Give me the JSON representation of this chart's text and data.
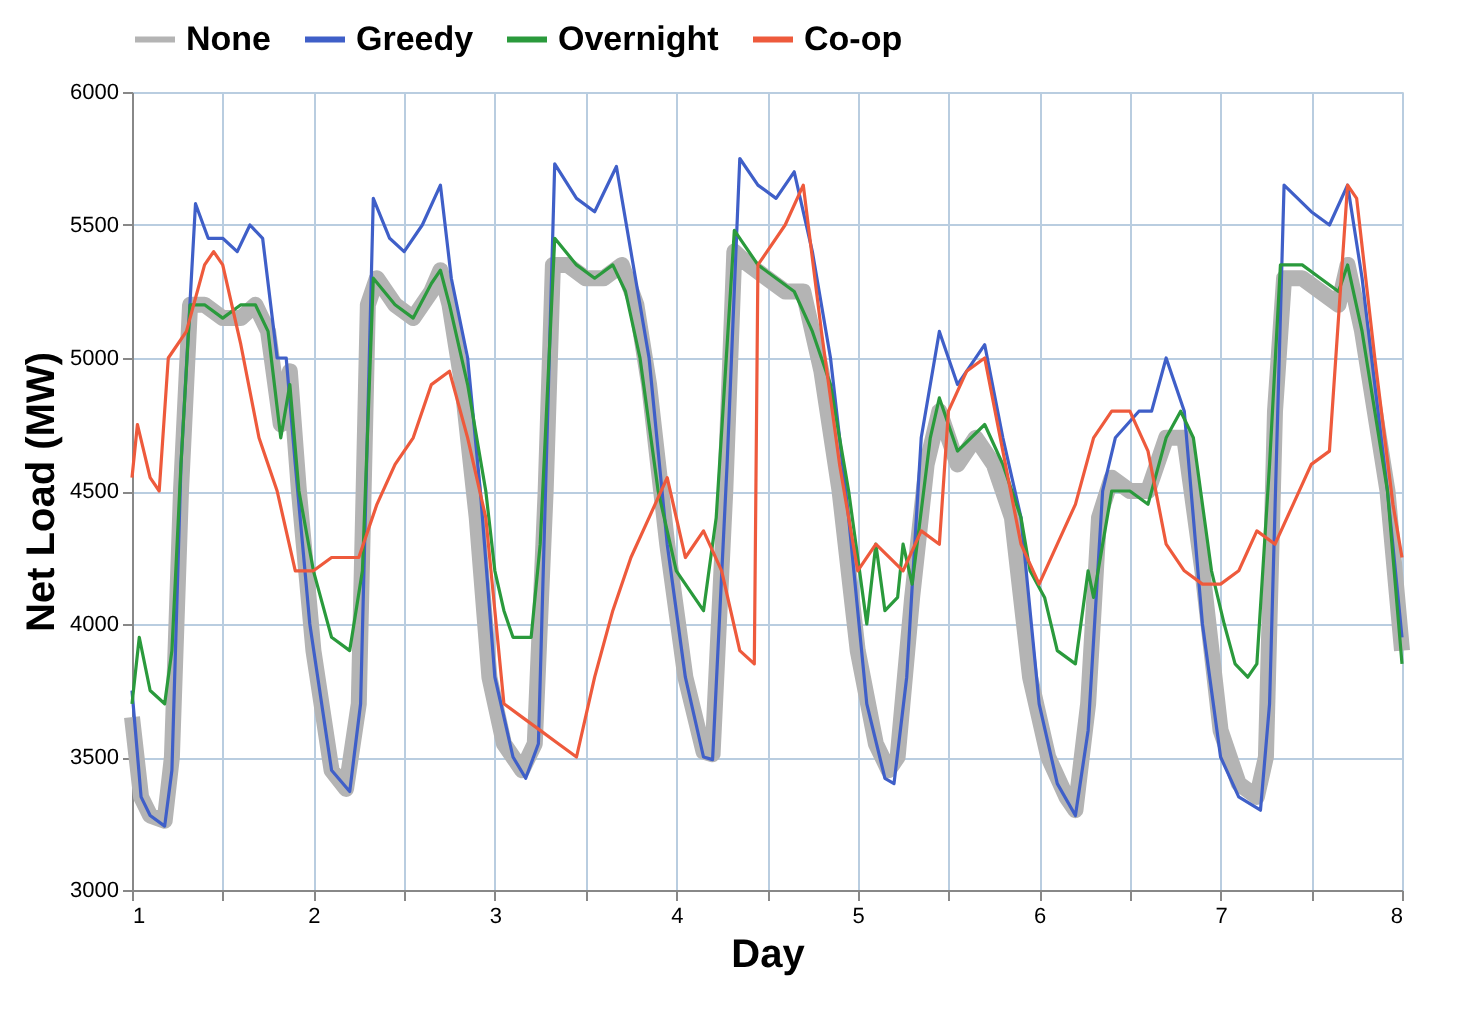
{
  "chart_data": {
    "type": "line",
    "xlabel": "Day",
    "ylabel": "Net Load (MW)",
    "xlim": [
      1,
      8
    ],
    "ylim": [
      3000,
      6000
    ],
    "xticks": [
      1,
      {
        "value": 1.5,
        "label": null
      },
      2,
      {
        "value": 2.5,
        "label": null
      },
      3,
      {
        "value": 3.5,
        "label": null
      },
      4,
      {
        "value": 4.5,
        "label": null
      },
      5,
      {
        "value": 5.5,
        "label": null
      },
      6,
      {
        "value": 6.5,
        "label": null
      },
      7,
      {
        "value": 7.5,
        "label": null
      },
      8
    ],
    "yticks": [
      3000,
      3500,
      4000,
      4500,
      5000,
      5500,
      6000
    ],
    "grid": true,
    "legend": "top",
    "marker": "none",
    "line_style": "solid",
    "series": [
      {
        "name": "None",
        "color": "#b4b4b4",
        "x": [
          1.0,
          1.05,
          1.1,
          1.18,
          1.22,
          1.27,
          1.32,
          1.4,
          1.5,
          1.6,
          1.68,
          1.75,
          1.82,
          1.87,
          1.92,
          2.0,
          2.1,
          2.18,
          2.25,
          2.3,
          2.35,
          2.45,
          2.55,
          2.65,
          2.7,
          2.75,
          2.82,
          2.9,
          2.97,
          3.05,
          3.15,
          3.22,
          3.28,
          3.32,
          3.4,
          3.5,
          3.6,
          3.7,
          3.78,
          3.85,
          3.95,
          4.05,
          4.15,
          4.2,
          4.27,
          4.32,
          4.4,
          4.5,
          4.6,
          4.7,
          4.8,
          4.9,
          5.0,
          5.1,
          5.17,
          5.22,
          5.3,
          5.38,
          5.45,
          5.55,
          5.65,
          5.75,
          5.85,
          5.95,
          6.05,
          6.15,
          6.2,
          6.27,
          6.33,
          6.4,
          6.5,
          6.6,
          6.7,
          6.8,
          6.9,
          7.0,
          7.1,
          7.2,
          7.25,
          7.3,
          7.35,
          7.45,
          7.55,
          7.65,
          7.7,
          7.78,
          7.85,
          7.92,
          8.0
        ],
        "values": [
          3650,
          3350,
          3280,
          3260,
          3500,
          4500,
          5200,
          5200,
          5150,
          5150,
          5200,
          5100,
          4750,
          4950,
          4500,
          3900,
          3450,
          3380,
          3700,
          5200,
          5300,
          5200,
          5150,
          5250,
          5330,
          5200,
          4900,
          4400,
          3800,
          3550,
          3450,
          3550,
          4500,
          5350,
          5350,
          5300,
          5300,
          5350,
          5200,
          4900,
          4300,
          3800,
          3520,
          3510,
          4500,
          5400,
          5350,
          5300,
          5250,
          5250,
          4950,
          4500,
          3900,
          3550,
          3450,
          3500,
          4100,
          4600,
          4800,
          4600,
          4700,
          4600,
          4400,
          3800,
          3500,
          3350,
          3300,
          3700,
          4400,
          4550,
          4500,
          4500,
          4700,
          4700,
          4200,
          3600,
          3400,
          3350,
          3500,
          4800,
          5300,
          5300,
          5250,
          5200,
          5350,
          5100,
          4800,
          4500,
          3900
        ]
      },
      {
        "name": "Greedy",
        "color": "#3f5fc8",
        "x": [
          1.0,
          1.05,
          1.1,
          1.18,
          1.22,
          1.27,
          1.35,
          1.42,
          1.5,
          1.58,
          1.65,
          1.72,
          1.8,
          1.85,
          1.9,
          1.98,
          2.1,
          2.2,
          2.26,
          2.33,
          2.42,
          2.5,
          2.6,
          2.7,
          2.76,
          2.85,
          2.92,
          3.0,
          3.1,
          3.17,
          3.24,
          3.33,
          3.45,
          3.55,
          3.67,
          3.75,
          3.85,
          3.95,
          4.05,
          4.15,
          4.2,
          4.28,
          4.35,
          4.45,
          4.55,
          4.65,
          4.75,
          4.85,
          4.95,
          5.05,
          5.15,
          5.2,
          5.27,
          5.35,
          5.45,
          5.55,
          5.7,
          5.8,
          5.9,
          6.0,
          6.1,
          6.2,
          6.27,
          6.35,
          6.42,
          6.55,
          6.62,
          6.7,
          6.8,
          6.9,
          7.0,
          7.1,
          7.22,
          7.27,
          7.35,
          7.5,
          7.6,
          7.7,
          7.78,
          7.85,
          7.92,
          8.0
        ],
        "values": [
          3750,
          3350,
          3280,
          3240,
          3450,
          4600,
          5580,
          5450,
          5450,
          5400,
          5500,
          5450,
          5000,
          5000,
          4600,
          4000,
          3450,
          3370,
          3700,
          5600,
          5450,
          5400,
          5500,
          5650,
          5300,
          5000,
          4500,
          3800,
          3500,
          3420,
          3550,
          5730,
          5600,
          5550,
          5720,
          5400,
          5000,
          4300,
          3800,
          3500,
          3490,
          4600,
          5750,
          5650,
          5600,
          5700,
          5400,
          5000,
          4400,
          3700,
          3420,
          3400,
          3800,
          4700,
          5100,
          4900,
          5050,
          4700,
          4400,
          3700,
          3400,
          3280,
          3600,
          4500,
          4700,
          4800,
          4800,
          5000,
          4800,
          4000,
          3500,
          3350,
          3300,
          3700,
          5650,
          5550,
          5500,
          5650,
          5300,
          4900,
          4500,
          3950
        ]
      },
      {
        "name": "Overnight",
        "color": "#2a9a3c",
        "x": [
          1.0,
          1.04,
          1.1,
          1.18,
          1.22,
          1.27,
          1.32,
          1.4,
          1.5,
          1.6,
          1.68,
          1.75,
          1.82,
          1.87,
          1.92,
          2.0,
          2.1,
          2.2,
          2.27,
          2.33,
          2.45,
          2.55,
          2.65,
          2.7,
          2.75,
          2.85,
          2.95,
          3.0,
          3.05,
          3.1,
          3.2,
          3.25,
          3.33,
          3.45,
          3.55,
          3.65,
          3.72,
          3.8,
          3.9,
          4.0,
          4.1,
          4.15,
          4.22,
          4.32,
          4.45,
          4.55,
          4.65,
          4.75,
          4.85,
          4.95,
          5.05,
          5.1,
          5.15,
          5.22,
          5.25,
          5.3,
          5.4,
          5.45,
          5.55,
          5.7,
          5.8,
          5.9,
          5.95,
          6.03,
          6.1,
          6.2,
          6.27,
          6.3,
          6.4,
          6.5,
          6.6,
          6.7,
          6.78,
          6.85,
          6.95,
          7.02,
          7.08,
          7.15,
          7.2,
          7.27,
          7.33,
          7.45,
          7.55,
          7.65,
          7.7,
          7.78,
          7.85,
          7.92,
          8.0
        ],
        "values": [
          3700,
          3950,
          3750,
          3700,
          3900,
          4600,
          5200,
          5200,
          5150,
          5200,
          5200,
          5100,
          4700,
          4900,
          4500,
          4200,
          3950,
          3900,
          4200,
          5300,
          5200,
          5150,
          5280,
          5330,
          5200,
          4900,
          4500,
          4200,
          4050,
          3950,
          3950,
          4300,
          5450,
          5350,
          5300,
          5350,
          5250,
          5000,
          4500,
          4200,
          4100,
          4050,
          4400,
          5480,
          5350,
          5300,
          5250,
          5100,
          4900,
          4500,
          4000,
          4300,
          4050,
          4100,
          4300,
          4150,
          4700,
          4850,
          4650,
          4750,
          4600,
          4400,
          4200,
          4100,
          3900,
          3850,
          4200,
          4100,
          4500,
          4500,
          4450,
          4700,
          4800,
          4700,
          4200,
          4000,
          3850,
          3800,
          3850,
          4600,
          5350,
          5350,
          5300,
          5250,
          5350,
          5100,
          4800,
          4500,
          3850
        ]
      },
      {
        "name": "Co-op",
        "color": "#ee5a3c",
        "x": [
          1.0,
          1.03,
          1.1,
          1.15,
          1.2,
          1.3,
          1.4,
          1.45,
          1.5,
          1.6,
          1.7,
          1.8,
          1.9,
          2.0,
          2.1,
          2.25,
          2.35,
          2.45,
          2.55,
          2.65,
          2.75,
          2.85,
          2.95,
          3.05,
          3.15,
          3.25,
          3.35,
          3.45,
          3.55,
          3.65,
          3.75,
          3.85,
          3.95,
          4.05,
          4.15,
          4.25,
          4.35,
          4.43,
          4.45,
          4.5,
          4.6,
          4.7,
          4.8,
          4.9,
          5.0,
          5.1,
          5.25,
          5.35,
          5.45,
          5.5,
          5.6,
          5.7,
          5.8,
          5.9,
          6.0,
          6.1,
          6.2,
          6.3,
          6.4,
          6.5,
          6.6,
          6.7,
          6.8,
          6.9,
          7.0,
          7.1,
          7.2,
          7.3,
          7.4,
          7.5,
          7.6,
          7.7,
          7.75,
          7.85,
          7.95,
          8.0
        ],
        "values": [
          4550,
          4750,
          4550,
          4500,
          5000,
          5100,
          5350,
          5400,
          5350,
          5050,
          4700,
          4500,
          4200,
          4200,
          4250,
          4250,
          4450,
          4600,
          4700,
          4900,
          4950,
          4700,
          4400,
          3700,
          3650,
          3600,
          3550,
          3500,
          3800,
          4050,
          4250,
          4400,
          4550,
          4250,
          4350,
          4200,
          3900,
          3850,
          5350,
          5400,
          5500,
          5650,
          5100,
          4600,
          4200,
          4300,
          4200,
          4350,
          4300,
          4800,
          4950,
          5000,
          4650,
          4300,
          4150,
          4300,
          4450,
          4700,
          4800,
          4800,
          4650,
          4300,
          4200,
          4150,
          4150,
          4200,
          4350,
          4300,
          4450,
          4600,
          4650,
          5650,
          5600,
          5000,
          4450,
          4250
        ]
      }
    ]
  }
}
